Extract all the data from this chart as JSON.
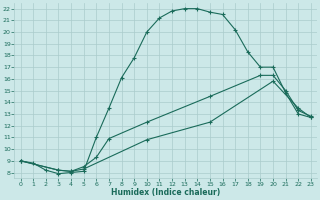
{
  "xlabel": "Humidex (Indice chaleur)",
  "bg_color": "#cce8e8",
  "grid_color": "#aacccc",
  "line_color": "#1a6b5a",
  "xlim": [
    -0.5,
    23.5
  ],
  "ylim": [
    7.5,
    22.5
  ],
  "xticks": [
    0,
    1,
    2,
    3,
    4,
    5,
    6,
    7,
    8,
    9,
    10,
    11,
    12,
    13,
    14,
    15,
    16,
    17,
    18,
    19,
    20,
    21,
    22,
    23
  ],
  "yticks": [
    8,
    9,
    10,
    11,
    12,
    13,
    14,
    15,
    16,
    17,
    18,
    19,
    20,
    21,
    22
  ],
  "line1_x": [
    0,
    1,
    2,
    3,
    4,
    5,
    6,
    7,
    8,
    9,
    10,
    11,
    12,
    13,
    14,
    15,
    16,
    17,
    18,
    19,
    20,
    21,
    22,
    23
  ],
  "line1_y": [
    9.0,
    8.8,
    8.2,
    7.9,
    8.0,
    8.1,
    11.0,
    13.5,
    16.1,
    17.8,
    20.0,
    21.2,
    21.8,
    22.0,
    22.0,
    21.7,
    21.5,
    20.2,
    18.3,
    17.0,
    17.0,
    14.8,
    13.0,
    12.7
  ],
  "line2_x": [
    0,
    3,
    4,
    5,
    6,
    7,
    10,
    15,
    19,
    20,
    21,
    22,
    23
  ],
  "line2_y": [
    9.0,
    8.2,
    8.1,
    8.5,
    9.3,
    10.9,
    12.3,
    14.5,
    16.3,
    16.3,
    15.0,
    13.3,
    12.8
  ],
  "line3_x": [
    0,
    3,
    4,
    5,
    10,
    15,
    20,
    22,
    23
  ],
  "line3_y": [
    9.0,
    8.2,
    8.1,
    8.3,
    10.8,
    12.3,
    15.8,
    13.5,
    12.7
  ]
}
